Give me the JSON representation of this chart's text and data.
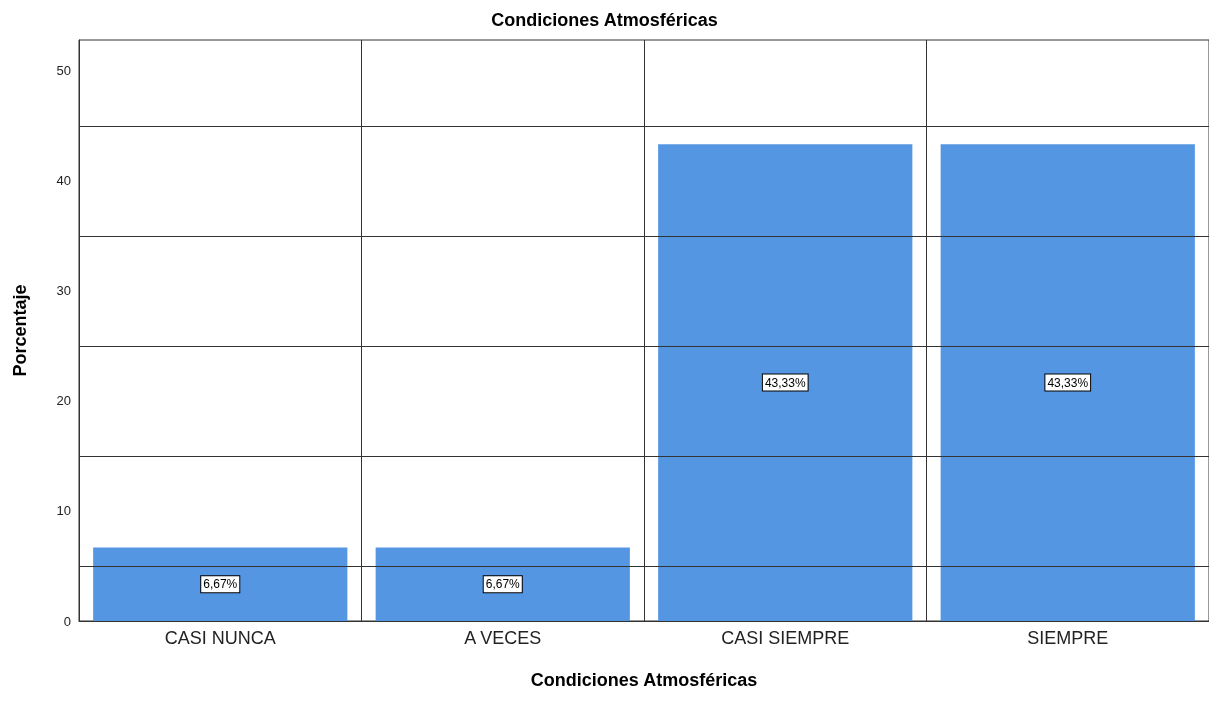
{
  "chart_data": {
    "type": "bar",
    "title": "Condiciones Atmosféricas",
    "xlabel": "Condiciones Atmosféricas",
    "ylabel": "Porcentaje",
    "categories": [
      "CASI NUNCA",
      "A VECES",
      "CASI SIEMPRE",
      "SIEMPRE"
    ],
    "values": [
      6.67,
      6.67,
      43.33,
      43.33
    ],
    "value_labels": [
      "6,67%",
      "6,67%",
      "43,33%",
      "43,33%"
    ],
    "color": "#5596e3",
    "ylim": [
      0,
      52.8
    ],
    "yticks": [
      0,
      10,
      20,
      30,
      40,
      50
    ],
    "grid": "x",
    "ref_lines": [
      {
        "axis": "y",
        "value": 5,
        "color": "#333333"
      },
      {
        "axis": "y",
        "value": 15,
        "color": "#333333"
      },
      {
        "axis": "y",
        "value": 25,
        "color": "#333333"
      },
      {
        "axis": "y",
        "value": 35,
        "color": "#333333"
      },
      {
        "axis": "y",
        "value": 45,
        "color": "#333333"
      }
    ]
  }
}
